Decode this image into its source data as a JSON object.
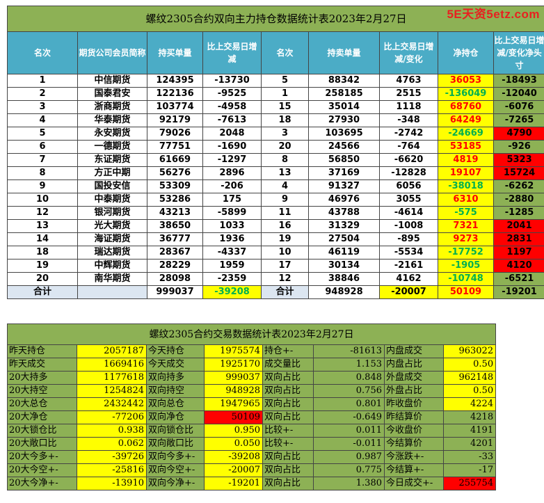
{
  "watermark": "5E天资5etz.com",
  "table1": {
    "title": "螺纹2305合约双向主力持仓数据统计表2023年2月27日",
    "headers": [
      "名次",
      "期货公司会员简称",
      "持买单量",
      "比上交易日增减",
      "名次",
      "持卖单量",
      "比上交易日增减/变化",
      "净持仓",
      "比上交易日增减/变化净头寸"
    ],
    "rows": [
      {
        "rank": "1",
        "name": "中信期货",
        "buy": "124395",
        "buy_chg": "-13730",
        "rank2": "5",
        "sell": "88342",
        "sell_chg": "4763",
        "net": "36053",
        "net_chg": "-18493"
      },
      {
        "rank": "2",
        "name": "国泰君安",
        "buy": "122136",
        "buy_chg": "-9525",
        "rank2": "1",
        "sell": "258185",
        "sell_chg": "2515",
        "net": "-136049",
        "net_chg": "-12040"
      },
      {
        "rank": "3",
        "name": "浙商期货",
        "buy": "103774",
        "buy_chg": "-4958",
        "rank2": "15",
        "sell": "35014",
        "sell_chg": "1118",
        "net": "68760",
        "net_chg": "-6076"
      },
      {
        "rank": "4",
        "name": "华泰期货",
        "buy": "92179",
        "buy_chg": "-7613",
        "rank2": "18",
        "sell": "27930",
        "sell_chg": "-348",
        "net": "64249",
        "net_chg": "-7265"
      },
      {
        "rank": "5",
        "name": "永安期货",
        "buy": "79026",
        "buy_chg": "2048",
        "rank2": "3",
        "sell": "103695",
        "sell_chg": "-2742",
        "net": "-24669",
        "net_chg": "4790"
      },
      {
        "rank": "6",
        "name": "一德期货",
        "buy": "77751",
        "buy_chg": "-1690",
        "rank2": "20",
        "sell": "24566",
        "sell_chg": "-764",
        "net": "53185",
        "net_chg": "-926"
      },
      {
        "rank": "7",
        "name": "东证期货",
        "buy": "61669",
        "buy_chg": "-1297",
        "rank2": "8",
        "sell": "56850",
        "sell_chg": "-6620",
        "net": "4819",
        "net_chg": "5323"
      },
      {
        "rank": "8",
        "name": "方正中期",
        "buy": "56276",
        "buy_chg": "2896",
        "rank2": "13",
        "sell": "37169",
        "sell_chg": "-12828",
        "net": "19107",
        "net_chg": "15724"
      },
      {
        "rank": "9",
        "name": "国投安信",
        "buy": "53309",
        "buy_chg": "-206",
        "rank2": "4",
        "sell": "91327",
        "sell_chg": "6056",
        "net": "-38018",
        "net_chg": "-6262"
      },
      {
        "rank": "10",
        "name": "中泰期货",
        "buy": "53286",
        "buy_chg": "175",
        "rank2": "9",
        "sell": "46976",
        "sell_chg": "3055",
        "net": "6310",
        "net_chg": "-2880"
      },
      {
        "rank": "12",
        "name": "银河期货",
        "buy": "43213",
        "buy_chg": "-5899",
        "rank2": "11",
        "sell": "43788",
        "sell_chg": "-4614",
        "net": "-575",
        "net_chg": "-1285"
      },
      {
        "rank": "13",
        "name": "光大期货",
        "buy": "38650",
        "buy_chg": "1033",
        "rank2": "16",
        "sell": "31329",
        "sell_chg": "-1008",
        "net": "7321",
        "net_chg": "2041"
      },
      {
        "rank": "14",
        "name": "海证期货",
        "buy": "36777",
        "buy_chg": "1936",
        "rank2": "19",
        "sell": "27504",
        "sell_chg": "-895",
        "net": "9273",
        "net_chg": "2831"
      },
      {
        "rank": "18",
        "name": "瑞达期货",
        "buy": "28367",
        "buy_chg": "-4337",
        "rank2": "10",
        "sell": "46119",
        "sell_chg": "-5534",
        "net": "-17752",
        "net_chg": "1197"
      },
      {
        "rank": "19",
        "name": "中辉期货",
        "buy": "28229",
        "buy_chg": "1959",
        "rank2": "17",
        "sell": "30134",
        "sell_chg": "-2161",
        "net": "-1905",
        "net_chg": "4120"
      },
      {
        "rank": "20",
        "name": "南华期货",
        "buy": "28098",
        "buy_chg": "-2359",
        "rank2": "12",
        "sell": "38846",
        "sell_chg": "4162",
        "net": "-10748",
        "net_chg": "-6521"
      }
    ],
    "total": {
      "label": "合计",
      "buy": "999037",
      "buy_chg": "-39208",
      "label2": "合计",
      "sell": "948928",
      "sell_chg": "-20007",
      "net": "50109",
      "net_chg": "-19201"
    }
  },
  "table2": {
    "title": "螺纹2305合约交易数据统计表2023年2月27日",
    "rows": [
      [
        "昨天持仓",
        "2057187",
        "今天持仓",
        "1975574",
        "持仓+-",
        "-81613",
        "内盘成交",
        "963022"
      ],
      [
        "昨天成交",
        "1669416",
        "今天成交",
        "1925170",
        "成交量比",
        "1.153",
        "内盘占比",
        "0.50"
      ],
      [
        "20大持多",
        "1177618",
        "双向持多",
        "999037",
        "双向占比",
        "0.848",
        "外盘成交",
        "962148"
      ],
      [
        "20大持空",
        "1254824",
        "双向持空",
        "948928",
        "双向占比",
        "0.756",
        "外盘占比",
        "0.50"
      ],
      [
        "20大总仓",
        "2432442",
        "双向总仓",
        "1947965",
        "双向占比",
        "0.801",
        "昨收盘价",
        "4224"
      ],
      [
        "20大净仓",
        "-77206",
        "双向净仓",
        "50109",
        "双向占比",
        "-0.649",
        "昨结算价",
        "4218"
      ],
      [
        "20大锁仓比",
        "0.938",
        "双向锁仓比",
        "0.950",
        "比较+-",
        "0.011",
        "今收盘价",
        "4191"
      ],
      [
        "20大敞口比",
        "0.062",
        "双向敞口比",
        "0.050",
        "比较+-",
        "-0.011",
        "今结算价",
        "4201"
      ],
      [
        "20大今多+-",
        "-39726",
        "双向今多+-",
        "-39208",
        "双向占比",
        "0.987",
        "今涨跌+-",
        "-33"
      ],
      [
        "20大今空+-",
        "-25816",
        "双向今空+-",
        "-20007",
        "双向占比",
        "0.775",
        "今结算+-",
        "-17"
      ],
      [
        "20大今净+-",
        "-13910",
        "双向今净+-",
        "-19201",
        "双向占比",
        "1.380",
        "今日成交+-",
        "255754"
      ]
    ]
  },
  "colors": {
    "green": "#8db155",
    "blue": "#4bacc6",
    "yellow": "#ffff00",
    "red": "#ff0000",
    "text_green": "#00b050"
  }
}
